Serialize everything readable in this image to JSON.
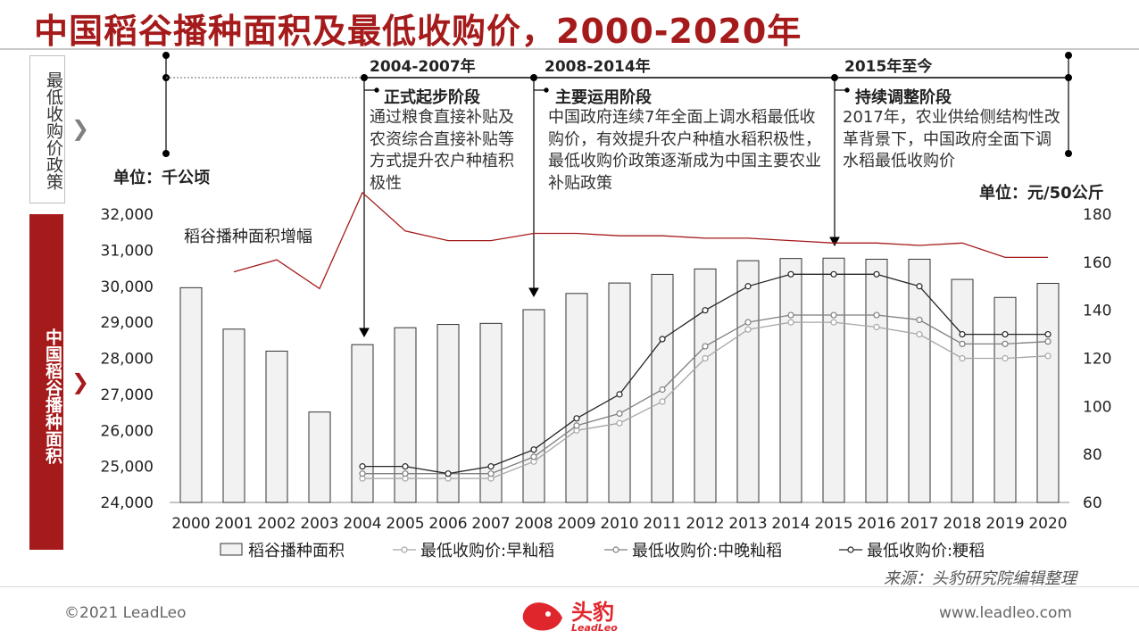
{
  "title": "中国稻谷播种面积及最低收购价，2000-2020年",
  "sidebar": {
    "top_label": "最低收购价政策",
    "bottom_label": "中国稻谷播种面积"
  },
  "units": {
    "left": "单位：千公顷",
    "right": "单位：元/50公斤"
  },
  "phases": [
    {
      "period": "2004-2007年",
      "name": "正式起步阶段",
      "desc": "通过粮食直接补贴及农资综合直接补贴等方式提升农户种植积极性"
    },
    {
      "period": "2008-2014年",
      "name": "主要运用阶段",
      "desc": "中国政府连续7年全面上调水稻最低收购价，有效提升农户种植水稻积极性，最低收购价政策逐渐成为中国主要农业补贴政策"
    },
    {
      "period": "2015年至今",
      "name": "持续调整阶段",
      "desc": "2017年，农业供给侧结构性改革背景下，中国政府全面下调水稻最低收购价"
    }
  ],
  "chart_data": {
    "type": "bar",
    "categories": [
      "2000",
      "2001",
      "2002",
      "2003",
      "2004",
      "2005",
      "2006",
      "2007",
      "2008",
      "2009",
      "2010",
      "2011",
      "2012",
      "2013",
      "2014",
      "2015",
      "2016",
      "2017",
      "2018",
      "2019",
      "2020"
    ],
    "y_left": {
      "min": 24000,
      "max": 32000,
      "ticks": [
        "24,000",
        "25,000",
        "26,000",
        "27,000",
        "28,000",
        "29,000",
        "30,000",
        "31,000",
        "32,000"
      ]
    },
    "y_right": {
      "min": 60,
      "max": 180,
      "ticks": [
        "60",
        "80",
        "100",
        "120",
        "140",
        "160",
        "180"
      ]
    },
    "annotation": "稻谷播种面积增幅",
    "series": [
      {
        "name": "稻谷播种面积",
        "axis": "left",
        "kind": "bar",
        "color": "#f2f2f2",
        "values": [
          29960,
          28810,
          28200,
          26510,
          28380,
          28850,
          28940,
          28970,
          29350,
          29800,
          30090,
          30330,
          30480,
          30710,
          30770,
          30780,
          30750,
          30750,
          30190,
          29690,
          30080
        ]
      },
      {
        "name": "最低收购价:早籼稻",
        "axis": "right",
        "kind": "line",
        "color": "#a6a6a6",
        "values": [
          null,
          null,
          null,
          null,
          70,
          70,
          70,
          70,
          77,
          90,
          93,
          102,
          120,
          132,
          135,
          135,
          133,
          130,
          120,
          120,
          121
        ]
      },
      {
        "name": "最低收购价:中晚籼稻",
        "axis": "right",
        "kind": "line",
        "color": "#7f7f7f",
        "values": [
          null,
          null,
          null,
          null,
          72,
          72,
          72,
          72,
          79,
          92,
          97,
          107,
          125,
          135,
          138,
          138,
          138,
          136,
          126,
          126,
          127
        ]
      },
      {
        "name": "最低收购价:粳稻",
        "axis": "right",
        "kind": "line",
        "color": "#262626",
        "values": [
          null,
          null,
          null,
          null,
          75,
          75,
          72,
          75,
          82,
          95,
          105,
          128,
          140,
          150,
          155,
          155,
          155,
          150,
          130,
          130,
          130
        ]
      },
      {
        "name": "稻谷播种面积增幅",
        "axis": "right",
        "kind": "line",
        "color": "#a51a1a",
        "values": [
          null,
          156,
          161,
          149,
          189,
          173,
          169,
          169,
          172,
          172,
          171,
          171,
          170,
          170,
          169,
          168,
          168,
          167,
          168,
          162,
          162
        ]
      }
    ]
  },
  "source": "来源：头豹研究院编辑整理",
  "footer": {
    "copyright": "©2021 LeadLeo",
    "website": "www.leadleo.com",
    "logo_text": "头豹",
    "logo_sub": "LeadLeo"
  }
}
